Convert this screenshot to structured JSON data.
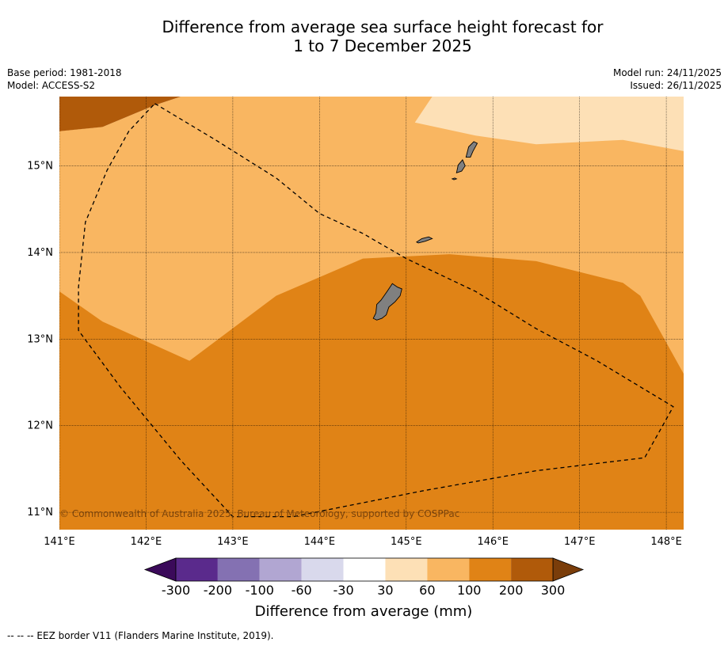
{
  "title": {
    "line1": "Difference from average sea surface height forecast for",
    "line2": "1 to 7 December 2025"
  },
  "meta_left": {
    "base_period": "Base period: 1981-2018",
    "model": "Model: ACCESS-S2"
  },
  "meta_right": {
    "model_run": "Model run: 24/11/2025",
    "issued": "Issued: 26/11/2025"
  },
  "map": {
    "lon_range": [
      141.0,
      148.2
    ],
    "lat_range": [
      10.8,
      15.8
    ],
    "lat_ticks": [
      {
        "value": 15,
        "label": "15°N"
      },
      {
        "value": 14,
        "label": "14°N"
      },
      {
        "value": 13,
        "label": "13°N"
      },
      {
        "value": 12,
        "label": "12°N"
      },
      {
        "value": 11,
        "label": "11°N"
      }
    ],
    "lon_ticks": [
      {
        "value": 141,
        "label": "141°E"
      },
      {
        "value": 142,
        "label": "142°E"
      },
      {
        "value": 143,
        "label": "143°E"
      },
      {
        "value": 144,
        "label": "144°E"
      },
      {
        "value": 145,
        "label": "145°E"
      },
      {
        "value": 146,
        "label": "146°E"
      },
      {
        "value": 147,
        "label": "147°E"
      },
      {
        "value": 148,
        "label": "148°E"
      }
    ],
    "colors": {
      "c30_60": "#fde0b6",
      "c60_100": "#f9b661",
      "c100_200": "#e08316",
      "c200_300": "#b05a0a",
      "land": "#808080"
    },
    "copyright": "© Commonwealth of Australia 2025, Bureau of Meteorology, supported by COSPPac",
    "zones": [
      {
        "name": "contour-100-200",
        "color": "#e08316",
        "points": [
          [
            141,
            15.4
          ],
          [
            141.5,
            15.45
          ],
          [
            142.5,
            15.8
          ],
          [
            148.2,
            15.8
          ],
          [
            148.2,
            10.8
          ],
          [
            141,
            10.8
          ]
        ]
      },
      {
        "name": "contour-60-100",
        "color": "#f9b661",
        "points": [
          [
            141,
            15.4
          ],
          [
            141.5,
            15.45
          ],
          [
            142.1,
            15.7
          ],
          [
            142.4,
            15.8
          ],
          [
            148.2,
            15.8
          ],
          [
            148.2,
            12.6
          ],
          [
            147.7,
            13.5
          ],
          [
            147.5,
            13.65
          ],
          [
            146.5,
            13.9
          ],
          [
            145.5,
            13.98
          ],
          [
            144.5,
            13.93
          ],
          [
            143.5,
            13.5
          ],
          [
            142.5,
            12.75
          ],
          [
            141.5,
            13.2
          ],
          [
            141,
            13.55
          ]
        ]
      },
      {
        "name": "contour-30-60",
        "color": "#fde0b6",
        "points": [
          [
            145.3,
            15.8
          ],
          [
            148.2,
            15.8
          ],
          [
            148.2,
            15.17
          ],
          [
            147.5,
            15.3
          ],
          [
            146.5,
            15.25
          ],
          [
            145.8,
            15.35
          ],
          [
            145.1,
            15.5
          ]
        ]
      },
      {
        "name": "contour-200-300",
        "color": "#b05a0a",
        "points": [
          [
            141,
            15.8
          ],
          [
            142.4,
            15.8
          ],
          [
            142.1,
            15.7
          ],
          [
            141.5,
            15.45
          ],
          [
            141,
            15.4
          ]
        ]
      }
    ],
    "islands": [
      {
        "name": "guam",
        "points": [
          [
            144.62,
            13.24
          ],
          [
            144.65,
            13.3
          ],
          [
            144.66,
            13.4
          ],
          [
            144.71,
            13.45
          ],
          [
            144.78,
            13.55
          ],
          [
            144.84,
            13.64
          ],
          [
            144.9,
            13.6
          ],
          [
            144.95,
            13.58
          ],
          [
            144.93,
            13.5
          ],
          [
            144.87,
            13.43
          ],
          [
            144.8,
            13.37
          ],
          [
            144.77,
            13.28
          ],
          [
            144.72,
            13.24
          ],
          [
            144.66,
            13.22
          ]
        ]
      },
      {
        "name": "rota",
        "points": [
          [
            145.12,
            14.12
          ],
          [
            145.18,
            14.16
          ],
          [
            145.26,
            14.18
          ],
          [
            145.3,
            14.16
          ],
          [
            145.22,
            14.13
          ],
          [
            145.14,
            14.11
          ]
        ]
      },
      {
        "name": "tinian",
        "points": [
          [
            145.58,
            14.92
          ],
          [
            145.6,
            15.01
          ],
          [
            145.65,
            15.07
          ],
          [
            145.68,
            15.0
          ],
          [
            145.64,
            14.94
          ]
        ]
      },
      {
        "name": "saipan",
        "points": [
          [
            145.69,
            15.1
          ],
          [
            145.72,
            15.22
          ],
          [
            145.78,
            15.28
          ],
          [
            145.82,
            15.26
          ],
          [
            145.77,
            15.17
          ],
          [
            145.74,
            15.1
          ]
        ]
      },
      {
        "name": "aguijan",
        "points": [
          [
            145.53,
            14.85
          ],
          [
            145.56,
            14.86
          ],
          [
            145.58,
            14.85
          ],
          [
            145.55,
            14.84
          ]
        ]
      }
    ],
    "eez_border": [
      [
        142.1,
        15.72
      ],
      [
        142.8,
        15.3
      ],
      [
        143.5,
        14.86
      ],
      [
        144.0,
        14.45
      ],
      [
        144.5,
        14.22
      ],
      [
        145.0,
        13.93
      ],
      [
        145.8,
        13.55
      ],
      [
        146.5,
        13.12
      ],
      [
        147.2,
        12.75
      ],
      [
        148.08,
        12.22
      ],
      [
        147.75,
        11.63
      ],
      [
        146.5,
        11.48
      ],
      [
        145.2,
        11.25
      ],
      [
        143.7,
        10.95
      ],
      [
        143.0,
        10.95
      ],
      [
        142.4,
        11.6
      ],
      [
        141.7,
        12.45
      ],
      [
        141.22,
        13.1
      ],
      [
        141.22,
        13.6
      ],
      [
        141.3,
        14.35
      ],
      [
        141.55,
        14.95
      ],
      [
        141.8,
        15.4
      ],
      [
        142.1,
        15.72
      ]
    ]
  },
  "colorbar": {
    "title": "Difference from average (mm)",
    "labels": [
      "-300",
      "-200",
      "-100",
      "-60",
      "-30",
      "30",
      "60",
      "100",
      "200",
      "300"
    ],
    "colors": [
      "#5a2a8c",
      "#8471b2",
      "#b1a6d2",
      "#d9d9ec",
      "#ffffff",
      "#fde0b6",
      "#f9b661",
      "#e08316",
      "#b05a0a"
    ],
    "under_color": "#3b0a5a",
    "over_color": "#7a3d0a"
  },
  "footer": "-- -- -- EEZ border V11 (Flanders Marine Institute, 2019)."
}
